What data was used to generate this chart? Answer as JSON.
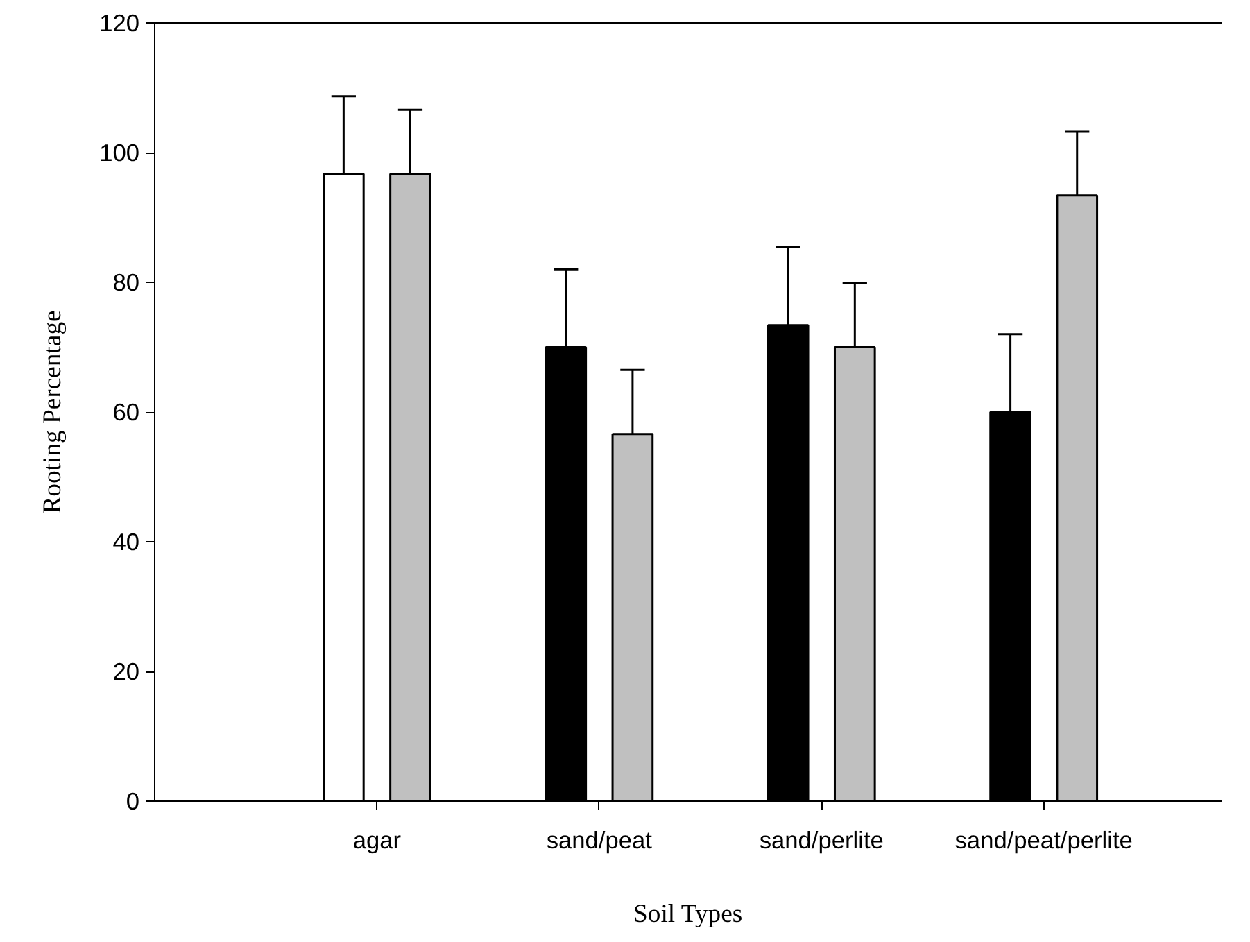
{
  "chart_data": {
    "type": "bar",
    "xlabel": "Soil Types",
    "ylabel": "Rooting Percentage",
    "categories": [
      "agar",
      "sand/peat",
      "sand/perlite",
      "sand/peat/perlite"
    ],
    "series": [
      {
        "colors": [
          "#ffffff",
          "#000000",
          "#000000",
          "#000000"
        ],
        "values": [
          96.7,
          70.0,
          73.4,
          60.0
        ],
        "errors": [
          [
            96.7,
            108.7
          ],
          [
            70.0,
            82.0
          ],
          [
            73.4,
            85.4
          ],
          [
            60.0,
            72.0
          ]
        ]
      },
      {
        "color": "#c0c0c0",
        "values": [
          96.7,
          56.6,
          70.0,
          93.4
        ],
        "errors": [
          [
            96.7,
            106.6
          ],
          [
            56.6,
            66.5
          ],
          [
            70.0,
            79.9
          ],
          [
            93.4,
            103.2
          ]
        ]
      }
    ],
    "ylim": [
      0,
      120
    ],
    "yticks": [
      0,
      20,
      40,
      60,
      80,
      100,
      120
    ],
    "grid": false
  }
}
